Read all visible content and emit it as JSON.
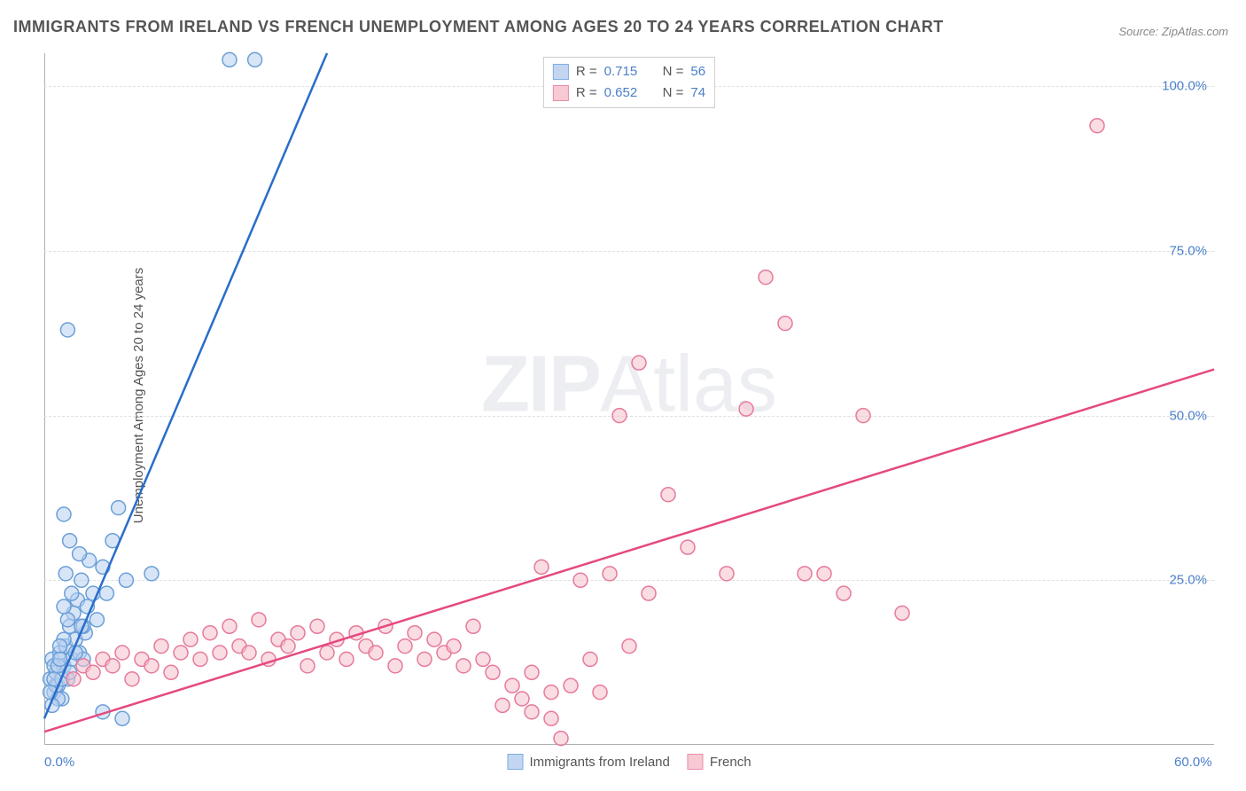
{
  "title": "IMMIGRANTS FROM IRELAND VS FRENCH UNEMPLOYMENT AMONG AGES 20 TO 24 YEARS CORRELATION CHART",
  "source": "Source: ZipAtlas.com",
  "ylabel": "Unemployment Among Ages 20 to 24 years",
  "watermark_a": "ZIP",
  "watermark_b": "Atlas",
  "chart": {
    "type": "scatter",
    "background_color": "#ffffff",
    "grid_color": "#e0e0e0",
    "axis_color": "#b0b0b0",
    "tick_fontsize": 15,
    "tick_color": "#4a7fc9",
    "xlim": [
      0,
      60
    ],
    "ylim": [
      0,
      105
    ],
    "xticks": [
      {
        "v": 0,
        "label": "0.0%"
      },
      {
        "v": 60,
        "label": "60.0%"
      }
    ],
    "yticks": [
      {
        "v": 25,
        "label": "25.0%"
      },
      {
        "v": 50,
        "label": "50.0%"
      },
      {
        "v": 75,
        "label": "75.0%"
      },
      {
        "v": 100,
        "label": "100.0%"
      }
    ],
    "marker_radius": 8,
    "marker_stroke_width": 1.5,
    "line_width": 2.5,
    "series": [
      {
        "key": "ireland",
        "label": "Immigrants from Ireland",
        "fill": "#b8d0f0",
        "fill_opacity": 0.55,
        "stroke": "#6a9fd8",
        "line_color": "#2a6dc9",
        "R": "0.715",
        "N": "56",
        "regression": {
          "x1": 0,
          "y1": 4,
          "x2": 14.5,
          "y2": 105
        },
        "points": [
          [
            0.3,
            10
          ],
          [
            0.4,
            13
          ],
          [
            0.5,
            8
          ],
          [
            0.6,
            11
          ],
          [
            0.7,
            9
          ],
          [
            0.8,
            14
          ],
          [
            0.9,
            7
          ],
          [
            1.0,
            12
          ],
          [
            1.1,
            15
          ],
          [
            1.2,
            10
          ],
          [
            1.3,
            18
          ],
          [
            1.4,
            13
          ],
          [
            1.5,
            20
          ],
          [
            1.6,
            16
          ],
          [
            1.7,
            22
          ],
          [
            1.8,
            14
          ],
          [
            1.9,
            25
          ],
          [
            2.0,
            13
          ],
          [
            2.1,
            17
          ],
          [
            2.2,
            21
          ],
          [
            2.3,
            28
          ],
          [
            2.5,
            23
          ],
          [
            2.7,
            19
          ],
          [
            3.0,
            27
          ],
          [
            3.2,
            23
          ],
          [
            3.5,
            31
          ],
          [
            3.8,
            36
          ],
          [
            4.2,
            25
          ],
          [
            5.5,
            26
          ],
          [
            1.0,
            16
          ],
          [
            0.7,
            7
          ],
          [
            0.4,
            6
          ],
          [
            0.6,
            9
          ],
          [
            0.9,
            10
          ],
          [
            1.3,
            11
          ],
          [
            1.6,
            14
          ],
          [
            2.0,
            18
          ],
          [
            0.5,
            12
          ],
          [
            0.8,
            15
          ],
          [
            1.2,
            19
          ],
          [
            1.0,
            21
          ],
          [
            1.4,
            23
          ],
          [
            0.3,
            8
          ],
          [
            0.5,
            10
          ],
          [
            0.7,
            12
          ],
          [
            1.8,
            29
          ],
          [
            1.1,
            26
          ],
          [
            1.3,
            31
          ],
          [
            1.0,
            35
          ],
          [
            1.9,
            18
          ],
          [
            3.0,
            5
          ],
          [
            4.0,
            4
          ],
          [
            1.2,
            63
          ],
          [
            9.5,
            104
          ],
          [
            10.8,
            104
          ],
          [
            0.8,
            13
          ]
        ]
      },
      {
        "key": "french",
        "label": "French",
        "fill": "#f5c0cc",
        "fill_opacity": 0.55,
        "stroke": "#e67a9a",
        "line_color": "#e54980",
        "R": "0.652",
        "N": "74",
        "regression": {
          "x1": 0,
          "y1": 2,
          "x2": 60,
          "y2": 57
        },
        "points": [
          [
            1.5,
            10
          ],
          [
            2.0,
            12
          ],
          [
            2.5,
            11
          ],
          [
            3.0,
            13
          ],
          [
            3.5,
            12
          ],
          [
            4.0,
            14
          ],
          [
            4.5,
            10
          ],
          [
            5.0,
            13
          ],
          [
            5.5,
            12
          ],
          [
            6.0,
            15
          ],
          [
            6.5,
            11
          ],
          [
            7.0,
            14
          ],
          [
            7.5,
            16
          ],
          [
            8.0,
            13
          ],
          [
            8.5,
            17
          ],
          [
            9.0,
            14
          ],
          [
            9.5,
            18
          ],
          [
            10.0,
            15
          ],
          [
            10.5,
            14
          ],
          [
            11.0,
            19
          ],
          [
            11.5,
            13
          ],
          [
            12.0,
            16
          ],
          [
            12.5,
            15
          ],
          [
            13.0,
            17
          ],
          [
            13.5,
            12
          ],
          [
            14.0,
            18
          ],
          [
            14.5,
            14
          ],
          [
            15.0,
            16
          ],
          [
            15.5,
            13
          ],
          [
            16.0,
            17
          ],
          [
            16.5,
            15
          ],
          [
            17.0,
            14
          ],
          [
            17.5,
            18
          ],
          [
            18.0,
            12
          ],
          [
            18.5,
            15
          ],
          [
            19.0,
            17
          ],
          [
            19.5,
            13
          ],
          [
            20.0,
            16
          ],
          [
            20.5,
            14
          ],
          [
            21.0,
            15
          ],
          [
            21.5,
            12
          ],
          [
            22.0,
            18
          ],
          [
            22.5,
            13
          ],
          [
            23.0,
            11
          ],
          [
            23.5,
            6
          ],
          [
            24.0,
            9
          ],
          [
            24.5,
            7
          ],
          [
            25.0,
            11
          ],
          [
            25.5,
            27
          ],
          [
            26.0,
            8
          ],
          [
            26.5,
            1
          ],
          [
            27.0,
            9
          ],
          [
            27.5,
            25
          ],
          [
            28.0,
            13
          ],
          [
            28.5,
            8
          ],
          [
            29.0,
            26
          ],
          [
            29.5,
            50
          ],
          [
            30.0,
            15
          ],
          [
            30.5,
            58
          ],
          [
            31.0,
            23
          ],
          [
            32.0,
            38
          ],
          [
            33.0,
            30
          ],
          [
            35.0,
            26
          ],
          [
            36.0,
            51
          ],
          [
            37.0,
            71
          ],
          [
            38.0,
            64
          ],
          [
            39.0,
            26
          ],
          [
            40.0,
            26
          ],
          [
            41.0,
            23
          ],
          [
            42.0,
            50
          ],
          [
            44.0,
            20
          ],
          [
            54.0,
            94
          ],
          [
            25.0,
            5
          ],
          [
            26.0,
            4
          ]
        ]
      }
    ]
  },
  "legend_top": {
    "r_label": "R =",
    "n_label": "N ="
  }
}
